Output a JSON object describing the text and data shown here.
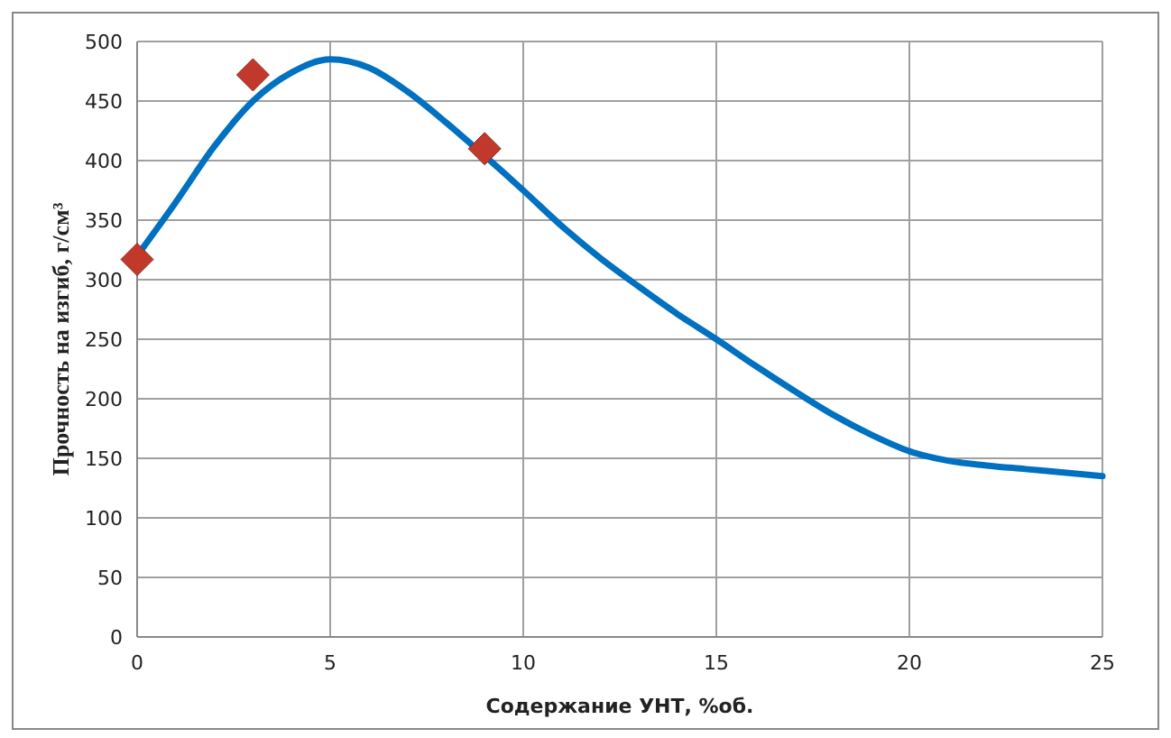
{
  "chart_data": {
    "type": "line",
    "xlabel": "Содержание УНТ, %об.",
    "ylabel": "Прочность на изгиб, г/см³",
    "xlim": [
      0,
      25
    ],
    "xticks": [
      0,
      5,
      10,
      15,
      20,
      25
    ],
    "ylim": [
      0,
      500
    ],
    "yticks": [
      0,
      50,
      100,
      150,
      200,
      250,
      300,
      350,
      400,
      450,
      500
    ],
    "grid": true,
    "series": [
      {
        "color": "#0070c0",
        "marker": "none",
        "line_style": "solid",
        "x": [
          0,
          1,
          2,
          3,
          4,
          5,
          6,
          7,
          8,
          9,
          10,
          11,
          12,
          13,
          14,
          15,
          16,
          17,
          18,
          19,
          20,
          21,
          22,
          23,
          24,
          25
        ],
        "values": [
          320,
          365,
          412,
          450,
          474,
          485,
          478,
          458,
          432,
          404,
          375,
          345,
          318,
          294,
          271,
          250,
          228,
          207,
          187,
          170,
          156,
          148,
          144,
          141,
          138,
          135
        ]
      },
      {
        "type": "scatter",
        "color": "#c0392b",
        "marker": "diamond",
        "x": [
          0,
          3,
          9
        ],
        "values": [
          317,
          472,
          410
        ]
      }
    ]
  }
}
